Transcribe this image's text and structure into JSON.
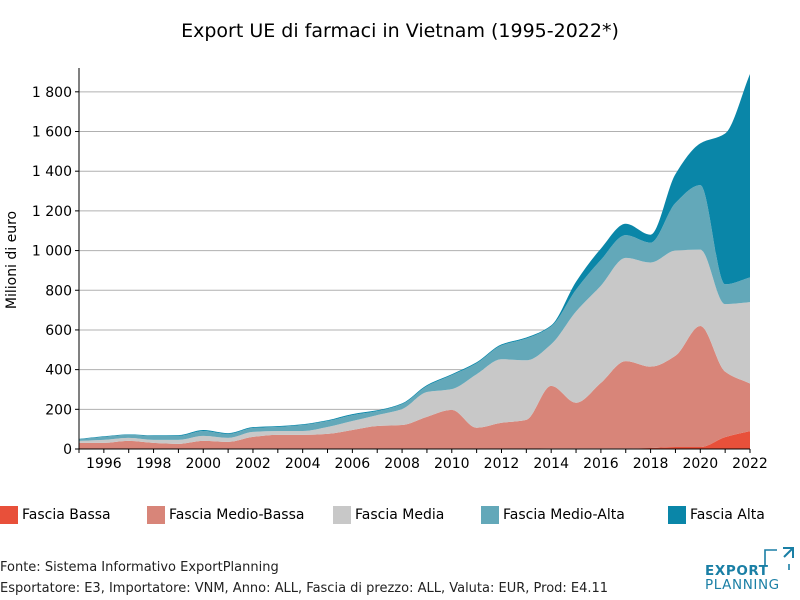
{
  "chart_data": {
    "type": "area",
    "title": "Export UE di farmaci in Vietnam (1995-2022*)",
    "ylabel": "Milioni di euro",
    "xlabel": "",
    "x": [
      1995,
      1996,
      1997,
      1998,
      1999,
      2000,
      2001,
      2002,
      2003,
      2004,
      2005,
      2006,
      2007,
      2008,
      2009,
      2010,
      2011,
      2012,
      2013,
      2014,
      2015,
      2016,
      2017,
      2018,
      2019,
      2020,
      2021,
      2022
    ],
    "x_ticks": [
      1996,
      1998,
      2000,
      2002,
      2004,
      2006,
      2008,
      2010,
      2012,
      2014,
      2016,
      2018,
      2020,
      2022
    ],
    "y_ticks": [
      0,
      200,
      400,
      600,
      800,
      1000,
      1200,
      1400,
      1600,
      1800
    ],
    "y_tick_labels": [
      "0",
      "200",
      "400",
      "600",
      "800",
      "1 000",
      "1 200",
      "1 400",
      "1 600",
      "1 800"
    ],
    "ylim": [
      0,
      1920
    ],
    "xlim": [
      1995,
      2022
    ],
    "grid": "horizontal",
    "legend_position": "bottom",
    "stacked": true,
    "series": [
      {
        "name": "Fascia Bassa",
        "color": "#e8503a",
        "values": [
          1,
          1,
          1,
          1,
          1,
          1,
          1,
          1,
          1,
          1,
          1,
          1,
          1,
          1,
          2,
          2,
          2,
          2,
          2,
          3,
          3,
          3,
          3,
          5,
          10,
          10,
          60,
          90
        ]
      },
      {
        "name": "Fascia Medio-Bassa",
        "color": "#d88579",
        "values": [
          30,
          30,
          40,
          30,
          25,
          40,
          35,
          60,
          70,
          70,
          75,
          95,
          115,
          120,
          160,
          195,
          105,
          130,
          145,
          315,
          230,
          330,
          440,
          410,
          460,
          610,
          330,
          240
        ]
      },
      {
        "name": "Fascia Media",
        "color": "#c8c8c8",
        "values": [
          10,
          15,
          15,
          15,
          20,
          25,
          20,
          25,
          20,
          20,
          35,
          45,
          55,
          80,
          125,
          105,
          270,
          320,
          300,
          210,
          460,
          490,
          520,
          525,
          530,
          385,
          340,
          410
        ]
      },
      {
        "name": "Fascia Medio-Alta",
        "color": "#63a8b9",
        "values": [
          8,
          15,
          15,
          20,
          20,
          25,
          20,
          20,
          20,
          30,
          30,
          30,
          20,
          25,
          30,
          70,
          55,
          70,
          110,
          90,
          110,
          130,
          115,
          100,
          240,
          325,
          100,
          125
        ]
      },
      {
        "name": "Fascia Alta",
        "color": "#0a86a8",
        "values": [
          2,
          3,
          3,
          3,
          4,
          5,
          4,
          4,
          4,
          4,
          4,
          5,
          4,
          4,
          5,
          5,
          5,
          5,
          5,
          5,
          40,
          57,
          57,
          40,
          145,
          210,
          760,
          1025
        ]
      }
    ]
  },
  "footer": {
    "source": "Fonte: Sistema Informativo ExportPlanning",
    "filters": "Esportatore: E3, Importatore: VNM, Anno: ALL, Fascia di prezzo: ALL, Valuta: EUR, Prod: E4.11"
  },
  "logo": {
    "line1": "EXPORT",
    "line2": "PLANNING",
    "color": "#1a7fa5"
  }
}
